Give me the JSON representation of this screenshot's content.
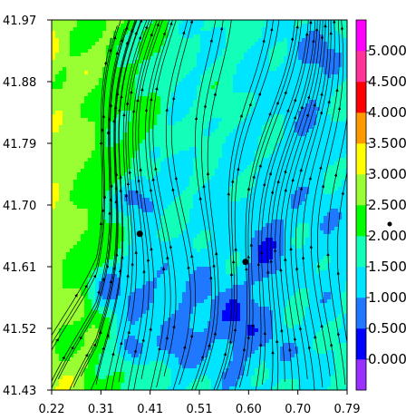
{
  "chart_data": {
    "type": "heatmap",
    "title": "",
    "xlabel": "",
    "ylabel": "",
    "xlim": [
      0.22,
      0.79
    ],
    "ylim": [
      41.43,
      41.97
    ],
    "x_ticks": [
      "0.22",
      "0.31",
      "0.41",
      "0.51",
      "0.60",
      "0.70",
      "0.79"
    ],
    "y_ticks": [
      "41.97",
      "41.88",
      "41.79",
      "41.70",
      "41.61",
      "41.52",
      "41.43"
    ],
    "colorbar": {
      "labels": [
        "0.000",
        "0.500",
        "1.000",
        "1.500",
        "2.000",
        "2.500",
        "3.000",
        "3.500",
        "4.000",
        "4.500",
        "5.000"
      ],
      "levels": [
        {
          "min": -0.5,
          "max": 0.0,
          "color": "#9a30ff"
        },
        {
          "min": 0.0,
          "max": 0.5,
          "color": "#0000ff"
        },
        {
          "min": 0.5,
          "max": 1.0,
          "color": "#1f78ff"
        },
        {
          "min": 1.0,
          "max": 1.5,
          "color": "#00e5ff"
        },
        {
          "min": 1.5,
          "max": 2.0,
          "color": "#12ffba"
        },
        {
          "min": 2.0,
          "max": 2.5,
          "color": "#00ff00"
        },
        {
          "min": 2.5,
          "max": 3.0,
          "color": "#99ff33"
        },
        {
          "min": 3.0,
          "max": 3.5,
          "color": "#ffff00"
        },
        {
          "min": 3.5,
          "max": 4.0,
          "color": "#ff9900"
        },
        {
          "min": 4.0,
          "max": 4.5,
          "color": "#ff0000"
        },
        {
          "min": 4.5,
          "max": 5.0,
          "color": "#ff3399"
        },
        {
          "min": 5.0,
          "max": 5.5,
          "color": "#ff00ff"
        }
      ]
    },
    "markers": [
      {
        "x": 0.39,
        "y": 41.658
      },
      {
        "x": 0.594,
        "y": 41.617
      }
    ],
    "outside_marker": true,
    "overlay": "streamlines with arrowheads",
    "field_regions": [
      {
        "x": 0.42,
        "y": 41.57,
        "rx": 0.11,
        "ry": 0.095,
        "level": 0.9
      },
      {
        "x": 0.57,
        "y": 41.53,
        "rx": 0.075,
        "ry": 0.075,
        "level": 0.45
      },
      {
        "x": 0.48,
        "y": 41.5,
        "rx": 0.06,
        "ry": 0.04,
        "level": 0.7
      },
      {
        "x": 0.63,
        "y": 41.64,
        "rx": 0.06,
        "ry": 0.08,
        "level": 0.7
      },
      {
        "x": 0.7,
        "y": 41.82,
        "rx": 0.1,
        "ry": 0.09,
        "level": 1.2
      },
      {
        "x": 0.72,
        "y": 41.92,
        "rx": 0.07,
        "ry": 0.05,
        "level": 0.8
      },
      {
        "x": 0.74,
        "y": 41.68,
        "rx": 0.055,
        "ry": 0.09,
        "level": 1.1
      },
      {
        "x": 0.385,
        "y": 41.71,
        "rx": 0.055,
        "ry": 0.04,
        "level": 0.6
      },
      {
        "x": 0.5,
        "y": 41.76,
        "rx": 0.08,
        "ry": 0.06,
        "level": 1.35
      },
      {
        "x": 0.33,
        "y": 41.58,
        "rx": 0.045,
        "ry": 0.04,
        "level": 0.8
      },
      {
        "x": 0.38,
        "y": 41.49,
        "rx": 0.035,
        "ry": 0.03,
        "level": 0.35
      },
      {
        "x": 0.655,
        "y": 41.5,
        "rx": 0.045,
        "ry": 0.05,
        "level": 0.9
      },
      {
        "x": 0.58,
        "y": 41.46,
        "rx": 0.04,
        "ry": 0.025,
        "level": 1.1
      },
      {
        "x": 0.51,
        "y": 41.83,
        "rx": 0.06,
        "ry": 0.05,
        "level": 1.7
      },
      {
        "x": 0.28,
        "y": 41.94,
        "rx": 0.05,
        "ry": 0.03,
        "level": 2.3
      },
      {
        "x": 0.24,
        "y": 41.67,
        "rx": 0.03,
        "ry": 0.06,
        "level": 2.6
      },
      {
        "x": 0.26,
        "y": 41.5,
        "rx": 0.04,
        "ry": 0.05,
        "level": 2.4
      }
    ]
  }
}
